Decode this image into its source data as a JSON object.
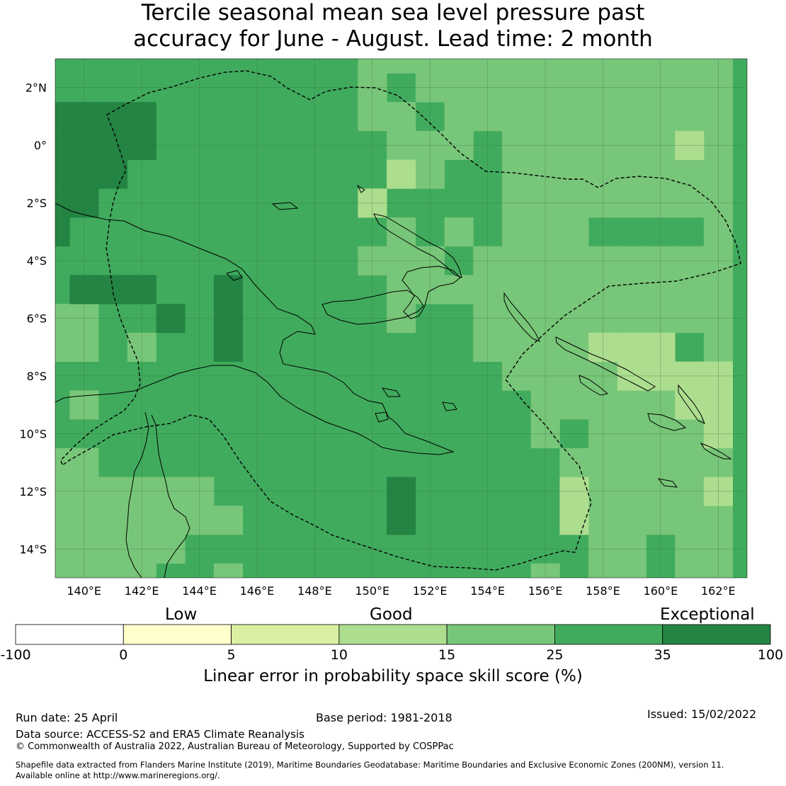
{
  "title_lines": [
    "Tercile seasonal mean sea level pressure past",
    "accuracy for June - August. Lead time: 2 month"
  ],
  "map": {
    "lon_labels": [
      "140°E",
      "142°E",
      "144°E",
      "146°E",
      "148°E",
      "150°E",
      "152°E",
      "154°E",
      "156°E",
      "158°E",
      "160°E",
      "162°E"
    ],
    "lat_labels": [
      "2°N",
      "0°",
      "2°S",
      "4°S",
      "6°S",
      "8°S",
      "10°S",
      "12°S",
      "14°S"
    ],
    "extent": {
      "lon_min": 139,
      "lon_max": 163,
      "lat_min": -15,
      "lat_max": 3
    },
    "legend_colors": {
      "25-35": "#41ab5d",
      "15-25": "#78c679",
      "10-15": "#addd8e",
      "35-100": "#238443"
    },
    "anomaly_cells": {
      "35-100": [
        [
          139,
          1
        ],
        [
          140,
          1
        ],
        [
          141,
          1
        ],
        [
          142,
          1
        ],
        [
          139,
          0
        ],
        [
          140,
          0
        ],
        [
          141,
          0
        ],
        [
          142,
          0
        ],
        [
          139,
          -1
        ],
        [
          140,
          -1
        ],
        [
          141,
          -1
        ],
        [
          139,
          -2
        ],
        [
          140,
          -2
        ],
        [
          139,
          -3
        ],
        [
          140,
          -5
        ],
        [
          141,
          -5
        ],
        [
          142,
          -5
        ],
        [
          143,
          -6
        ],
        [
          145,
          -5
        ],
        [
          145,
          -6
        ],
        [
          145,
          -7
        ],
        [
          151,
          -12
        ],
        [
          151,
          -13
        ]
      ],
      "15-25": [
        [
          150,
          3
        ],
        [
          151,
          3
        ],
        [
          152,
          3
        ],
        [
          153,
          3
        ],
        [
          154,
          3
        ],
        [
          155,
          3
        ],
        [
          156,
          3
        ],
        [
          157,
          3
        ],
        [
          158,
          3
        ],
        [
          159,
          3
        ],
        [
          160,
          3
        ],
        [
          161,
          3
        ],
        [
          162,
          3
        ],
        [
          150,
          2
        ],
        [
          152,
          2
        ],
        [
          153,
          2
        ],
        [
          154,
          2
        ],
        [
          155,
          2
        ],
        [
          156,
          2
        ],
        [
          157,
          2
        ],
        [
          158,
          2
        ],
        [
          159,
          2
        ],
        [
          160,
          2
        ],
        [
          161,
          2
        ],
        [
          162,
          2
        ],
        [
          150,
          1
        ],
        [
          151,
          1
        ],
        [
          153,
          1
        ],
        [
          154,
          1
        ],
        [
          155,
          1
        ],
        [
          156,
          1
        ],
        [
          157,
          1
        ],
        [
          158,
          1
        ],
        [
          159,
          1
        ],
        [
          160,
          1
        ],
        [
          161,
          1
        ],
        [
          162,
          1
        ],
        [
          151,
          0
        ],
        [
          152,
          0
        ],
        [
          153,
          0
        ],
        [
          155,
          0
        ],
        [
          156,
          0
        ],
        [
          157,
          0
        ],
        [
          158,
          0
        ],
        [
          159,
          0
        ],
        [
          160,
          0
        ],
        [
          162,
          0
        ],
        [
          151,
          -1
        ],
        [
          152,
          -1
        ],
        [
          155,
          -1
        ],
        [
          156,
          -1
        ],
        [
          157,
          -1
        ],
        [
          158,
          -1
        ],
        [
          159,
          -1
        ],
        [
          160,
          -1
        ],
        [
          161,
          -1
        ],
        [
          162,
          -1
        ],
        [
          150,
          -2
        ],
        [
          155,
          -2
        ],
        [
          156,
          -2
        ],
        [
          157,
          -2
        ],
        [
          158,
          -2
        ],
        [
          159,
          -2
        ],
        [
          160,
          -2
        ],
        [
          161,
          -2
        ],
        [
          162,
          -2
        ],
        [
          151,
          -3
        ],
        [
          153,
          -3
        ],
        [
          155,
          -3
        ],
        [
          156,
          -3
        ],
        [
          157,
          -3
        ],
        [
          162,
          -3
        ],
        [
          150,
          -4
        ],
        [
          151,
          -4
        ],
        [
          152,
          -4
        ],
        [
          154,
          -4
        ],
        [
          155,
          -4
        ],
        [
          156,
          -4
        ],
        [
          157,
          -4
        ],
        [
          158,
          -4
        ],
        [
          159,
          -4
        ],
        [
          160,
          -4
        ],
        [
          161,
          -4
        ],
        [
          162,
          -4
        ],
        [
          151,
          -5
        ],
        [
          152,
          -5
        ],
        [
          153,
          -5
        ],
        [
          154,
          -5
        ],
        [
          155,
          -5
        ],
        [
          156,
          -5
        ],
        [
          157,
          -5
        ],
        [
          158,
          -5
        ],
        [
          159,
          -5
        ],
        [
          160,
          -5
        ],
        [
          161,
          -5
        ],
        [
          162,
          -5
        ],
        [
          151,
          -6
        ],
        [
          154,
          -6
        ],
        [
          155,
          -6
        ],
        [
          156,
          -6
        ],
        [
          157,
          -6
        ],
        [
          158,
          -6
        ],
        [
          159,
          -6
        ],
        [
          160,
          -6
        ],
        [
          161,
          -6
        ],
        [
          162,
          -6
        ],
        [
          139,
          -6
        ],
        [
          140,
          -6
        ],
        [
          142,
          -7
        ],
        [
          139,
          -7
        ],
        [
          140,
          -7
        ],
        [
          154,
          -7
        ],
        [
          155,
          -7
        ],
        [
          156,
          -7
        ],
        [
          157,
          -7
        ],
        [
          158,
          -7
        ],
        [
          162,
          -7
        ],
        [
          155,
          -8
        ],
        [
          156,
          -8
        ],
        [
          157,
          -8
        ],
        [
          158,
          -8
        ],
        [
          159,
          -8
        ],
        [
          160,
          -8
        ],
        [
          161,
          -8
        ],
        [
          162,
          -8
        ],
        [
          140,
          -9
        ],
        [
          156,
          -9
        ],
        [
          157,
          -9
        ],
        [
          158,
          -9
        ],
        [
          159,
          -9
        ],
        [
          160,
          -9
        ],
        [
          156,
          -10
        ],
        [
          158,
          -10
        ],
        [
          159,
          -10
        ],
        [
          160,
          -10
        ],
        [
          161,
          -10
        ],
        [
          139,
          -11
        ],
        [
          140,
          -11
        ],
        [
          157,
          -11
        ],
        [
          158,
          -11
        ],
        [
          159,
          -11
        ],
        [
          160,
          -11
        ],
        [
          161,
          -11
        ],
        [
          162,
          -11
        ],
        [
          139,
          -12
        ],
        [
          140,
          -12
        ],
        [
          141,
          -12
        ],
        [
          142,
          -12
        ],
        [
          143,
          -12
        ],
        [
          144,
          -12
        ],
        [
          157,
          -12
        ],
        [
          158,
          -12
        ],
        [
          159,
          -12
        ],
        [
          160,
          -12
        ],
        [
          161,
          -12
        ],
        [
          162,
          -12
        ],
        [
          139,
          -13
        ],
        [
          140,
          -13
        ],
        [
          141,
          -13
        ],
        [
          142,
          -13
        ],
        [
          143,
          -13
        ],
        [
          144,
          -13
        ],
        [
          145,
          -13
        ],
        [
          157,
          -13
        ],
        [
          158,
          -13
        ],
        [
          159,
          -13
        ],
        [
          160,
          -13
        ],
        [
          161,
          -13
        ],
        [
          162,
          -13
        ],
        [
          139,
          -14
        ],
        [
          140,
          -14
        ],
        [
          141,
          -14
        ],
        [
          142,
          -14
        ],
        [
          143,
          -14
        ],
        [
          158,
          -14
        ],
        [
          159,
          -14
        ],
        [
          161,
          -14
        ],
        [
          162,
          -14
        ],
        [
          139,
          -15
        ],
        [
          140,
          -15
        ],
        [
          141,
          -15
        ],
        [
          142,
          -15
        ],
        [
          145,
          -15
        ],
        [
          156,
          -15
        ],
        [
          158,
          -15
        ],
        [
          159,
          -15
        ],
        [
          161,
          -15
        ],
        [
          162,
          -15
        ]
      ],
      "10-15": [
        [
          161,
          0
        ],
        [
          151,
          -1
        ],
        [
          150,
          -2
        ],
        [
          158,
          -7
        ],
        [
          159,
          -7
        ],
        [
          160,
          -7
        ],
        [
          159,
          -8
        ],
        [
          160,
          -8
        ],
        [
          161,
          -8
        ],
        [
          162,
          -8
        ],
        [
          161,
          -9
        ],
        [
          162,
          -9
        ],
        [
          162,
          -10
        ],
        [
          162,
          -12
        ],
        [
          157,
          -12
        ],
        [
          157,
          -13
        ]
      ]
    }
  },
  "colorbar": {
    "categories": [
      "Low",
      "Good",
      "Exceptional"
    ],
    "ticks": [
      "-100",
      "0",
      "5",
      "10",
      "15",
      "25",
      "35",
      "100"
    ],
    "colors": [
      "#ffffff",
      "#ffffcc",
      "#d9f0a3",
      "#addd8e",
      "#78c679",
      "#41ab5d",
      "#238443"
    ],
    "label": "Linear error in probability space skill score (%)"
  },
  "footer": {
    "run_date": "Run date: 25 April",
    "base_period": "Base period: 1981-2018",
    "issued": "Issued: 15/02/2022",
    "data_source": "Data source: ACCESS-S2 and ERA5 Climate Reanalysis",
    "copyright": "© Commonwealth of Australia 2022, Australian Bureau of Meteorology, Supported by COSPPac",
    "shapefile_line1": "Shapefile data extracted from Flanders Marine Institute (2019), Maritime Boundaries Geodatabase: Maritime Boundaries and Exclusive Economic Zones (200NM), version 11.",
    "shapefile_line2": "Available online at http://www.marineregions.org/."
  }
}
